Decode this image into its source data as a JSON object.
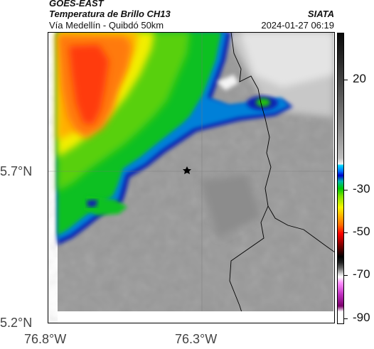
{
  "header": {
    "satellite": "GOES-EAST",
    "product": "Temperatura de Brillo CH13",
    "region": "Vía Medellín - Quibdó 50km",
    "brand": "SIATA",
    "datetime": "2024-01-27 06:19"
  },
  "axes": {
    "y_ticks": [
      "5.7°N",
      "5.2°N"
    ],
    "x_ticks": [
      "76.8°W",
      "76.3°W"
    ]
  },
  "colorbar": {
    "ticks": [
      "20",
      "-30",
      "-50",
      "-70",
      "-90"
    ],
    "colors": {
      "warm_gray": "#9a9a9a",
      "cold_blue": "#0032c8",
      "cyan": "#00d8ff",
      "green": "#18d418",
      "yellow": "#f7f400",
      "orange": "#ff7000",
      "red": "#ff2000"
    }
  },
  "map": {
    "marker_icon": "star-icon"
  }
}
